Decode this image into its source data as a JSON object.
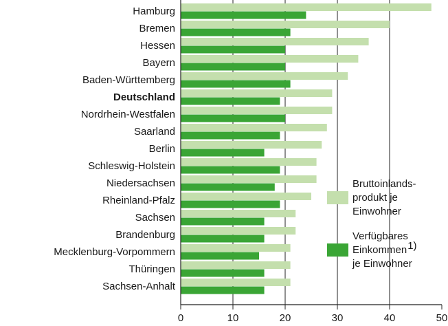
{
  "chart_data": {
    "type": "bar",
    "orientation": "horizontal",
    "categories": [
      "Hamburg",
      "Bremen",
      "Hessen",
      "Bayern",
      "Baden-Württemberg",
      "Deutschland",
      "Nordrhein-Westfalen",
      "Saarland",
      "Berlin",
      "Schleswig-Holstein",
      "Niedersachsen",
      "Rheinland-Pfalz",
      "Sachsen",
      "Brandenburg",
      "Mecklenburg-Vorpommern",
      "Thüringen",
      "Sachsen-Anhalt"
    ],
    "highlight_index": 5,
    "series": [
      {
        "name_lines": [
          "Bruttoinlands-",
          "produkt je",
          "Einwohner"
        ],
        "color": "#c4dfad",
        "values": [
          48,
          40,
          36,
          34,
          32,
          29,
          29,
          28,
          27,
          26,
          26,
          25,
          22,
          22,
          21,
          21,
          21
        ]
      },
      {
        "name_lines": [
          "Verfügbares",
          "Einkommen",
          "je Einwohner"
        ],
        "name_note": "1)",
        "color": "#3aa535",
        "values": [
          24,
          21,
          20,
          20,
          21,
          19,
          20,
          19,
          16,
          19,
          18,
          19,
          16,
          16,
          15,
          16,
          16
        ]
      }
    ],
    "xlim": [
      0,
      50
    ],
    "xticks": [
      0,
      10,
      20,
      30,
      40,
      50
    ],
    "grid": true
  }
}
